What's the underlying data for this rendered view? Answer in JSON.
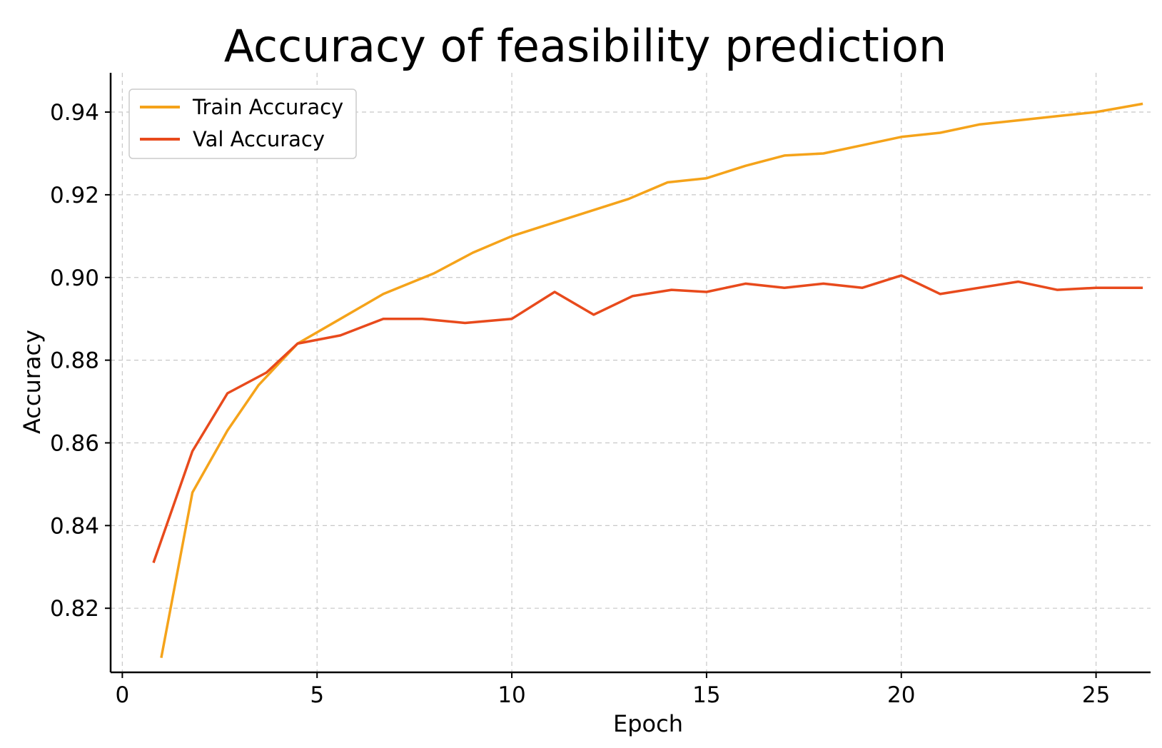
{
  "chart_data": {
    "type": "line",
    "title": "Accuracy of feasibility prediction",
    "xlabel": "Epoch",
    "ylabel": "Accuracy",
    "xlim": [
      -0.3,
      26.4
    ],
    "ylim": [
      0.8045,
      0.9495
    ],
    "xticks": [
      0,
      5,
      10,
      15,
      20,
      25
    ],
    "xtick_labels": [
      "0",
      "5",
      "10",
      "15",
      "20",
      "25"
    ],
    "yticks": [
      0.82,
      0.84,
      0.86,
      0.88,
      0.9,
      0.92,
      0.94
    ],
    "ytick_labels": [
      "0.82",
      "0.84",
      "0.86",
      "0.88",
      "0.90",
      "0.92",
      "0.94"
    ],
    "grid": true,
    "legend_position": "top-left",
    "series": [
      {
        "name": "Train Accuracy",
        "color": "#f5a31a",
        "x": [
          1,
          1.8,
          2.7,
          3.5,
          4.5,
          5.6,
          6.7,
          8,
          9,
          10,
          11,
          12,
          13,
          14,
          15,
          16,
          17,
          18,
          19,
          20,
          21,
          22,
          23,
          24,
          25,
          26.2
        ],
        "y": [
          0.808,
          0.848,
          0.863,
          0.874,
          0.884,
          0.89,
          0.896,
          0.901,
          0.906,
          0.91,
          0.913,
          0.916,
          0.919,
          0.923,
          0.924,
          0.927,
          0.9295,
          0.93,
          0.932,
          0.934,
          0.935,
          0.937,
          0.938,
          0.939,
          0.94,
          0.942
        ]
      },
      {
        "name": "Val Accuracy",
        "color": "#e84a1c",
        "x": [
          0.8,
          1.8,
          2.7,
          3.7,
          4.5,
          5.6,
          6.7,
          7.7,
          8.8,
          10,
          11.1,
          12.1,
          13.1,
          14.1,
          15,
          16,
          17,
          18,
          19,
          20,
          21,
          22,
          23,
          24,
          25,
          26.2
        ],
        "y": [
          0.831,
          0.858,
          0.872,
          0.877,
          0.884,
          0.886,
          0.89,
          0.89,
          0.889,
          0.89,
          0.8965,
          0.891,
          0.8955,
          0.897,
          0.8965,
          0.8985,
          0.8975,
          0.8985,
          0.8975,
          0.9005,
          0.896,
          0.8975,
          0.899,
          0.897,
          0.8975,
          0.8975
        ]
      }
    ]
  }
}
